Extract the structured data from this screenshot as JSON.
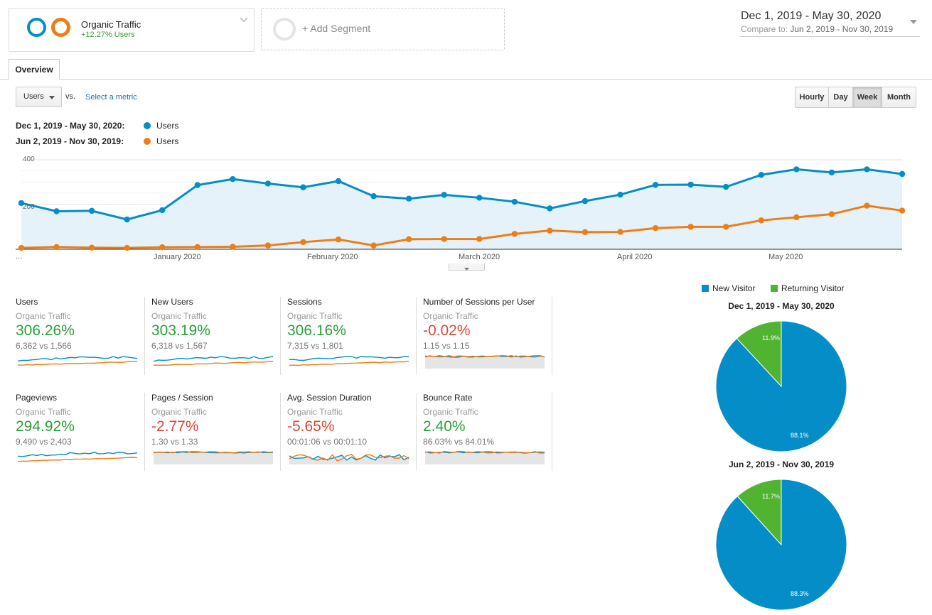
{
  "segments": {
    "active": {
      "name": "Organic Traffic",
      "sub": "+12.27% Users"
    },
    "add_label": "+ Add Segment"
  },
  "date_range": {
    "primary": "Dec 1, 2019 - May 30, 2020",
    "compare_label": "Compare to:",
    "compare": "Jun 2, 2019 - Nov 30, 2019"
  },
  "tabs": {
    "overview": "Overview"
  },
  "controls": {
    "metric": "Users",
    "vs": "vs.",
    "select_metric": "Select a metric",
    "granularity": [
      "Hourly",
      "Day",
      "Week",
      "Month"
    ],
    "active_granularity": "Week"
  },
  "legend": {
    "primary_range": "Dec 1, 2019 - May 30, 2020:",
    "compare_range": "Jun 2, 2019 - Nov 30, 2019:",
    "metric": "Users"
  },
  "colors": {
    "primary": "#058dc7",
    "compare": "#ed7e17",
    "new_visitor": "#058dc7",
    "returning_visitor": "#50b432",
    "positive": "#2b9e3a",
    "negative": "#dc4637"
  },
  "chart_data": {
    "type": "line",
    "ylim": [
      0,
      400
    ],
    "y_ticks": [
      "200",
      "400"
    ],
    "x_tick_labels": [
      "...",
      "January 2020",
      "February 2020",
      "March 2020",
      "April 2020",
      "May 2020"
    ],
    "series": [
      {
        "name": "Users",
        "range": "Dec 1, 2019 - May 30, 2020",
        "values": [
          205,
          168,
          170,
          131,
          173,
          286,
          313,
          293,
          276,
          304,
          236,
          225,
          242,
          229,
          211,
          181,
          214,
          243,
          287,
          288,
          278,
          332,
          357,
          343,
          357,
          336
        ]
      },
      {
        "name": "Users",
        "range": "Jun 2, 2019 - Nov 30, 2019",
        "values": [
          3,
          7,
          4,
          3,
          6,
          7,
          8,
          14,
          29,
          41,
          14,
          42,
          43,
          43,
          66,
          81,
          74,
          75,
          92,
          98,
          98,
          127,
          141,
          155,
          193,
          171
        ]
      }
    ]
  },
  "scorecards": [
    {
      "title": "Users",
      "segment": "Organic Traffic",
      "value": "306.26%",
      "trend": "pos",
      "compare": "6,362 vs 1,566",
      "spark": "trend-up"
    },
    {
      "title": "New Users",
      "segment": "Organic Traffic",
      "value": "303.19%",
      "trend": "pos",
      "compare": "6,318 vs 1,567",
      "spark": "trend-up"
    },
    {
      "title": "Sessions",
      "segment": "Organic Traffic",
      "value": "306.16%",
      "trend": "pos",
      "compare": "7,315 vs 1,801",
      "spark": "trend-up"
    },
    {
      "title": "Number of Sessions per User",
      "segment": "Organic Traffic",
      "value": "-0.02%",
      "trend": "neg",
      "compare": "1.15 vs 1.15",
      "spark": "flat"
    },
    {
      "title": "Pageviews",
      "segment": "Organic Traffic",
      "value": "294.92%",
      "trend": "pos",
      "compare": "9,490 vs 2,403",
      "spark": "trend-up"
    },
    {
      "title": "Pages / Session",
      "segment": "Organic Traffic",
      "value": "-2.77%",
      "trend": "neg",
      "compare": "1.30 vs 1.33",
      "spark": "flat"
    },
    {
      "title": "Avg. Session Duration",
      "segment": "Organic Traffic",
      "value": "-5.65%",
      "trend": "neg",
      "compare": "00:01:06 vs 00:01:10",
      "spark": "noisy"
    },
    {
      "title": "Bounce Rate",
      "segment": "Organic Traffic",
      "value": "2.40%",
      "trend": "pos",
      "compare": "86.03% vs 84.01%",
      "spark": "flat-high"
    }
  ],
  "pie": {
    "legend": [
      "New Visitor",
      "Returning Visitor"
    ],
    "charts": [
      {
        "title": "Dec 1, 2019 - May 30, 2020",
        "new_pct": 88.1,
        "returning_pct": 11.9,
        "new_label": "88.1%",
        "returning_label": "11.9%"
      },
      {
        "title": "Jun 2, 2019 - Nov 30, 2019",
        "new_pct": 88.3,
        "returning_pct": 11.7,
        "new_label": "88.3%",
        "returning_label": "11.7%"
      }
    ]
  }
}
